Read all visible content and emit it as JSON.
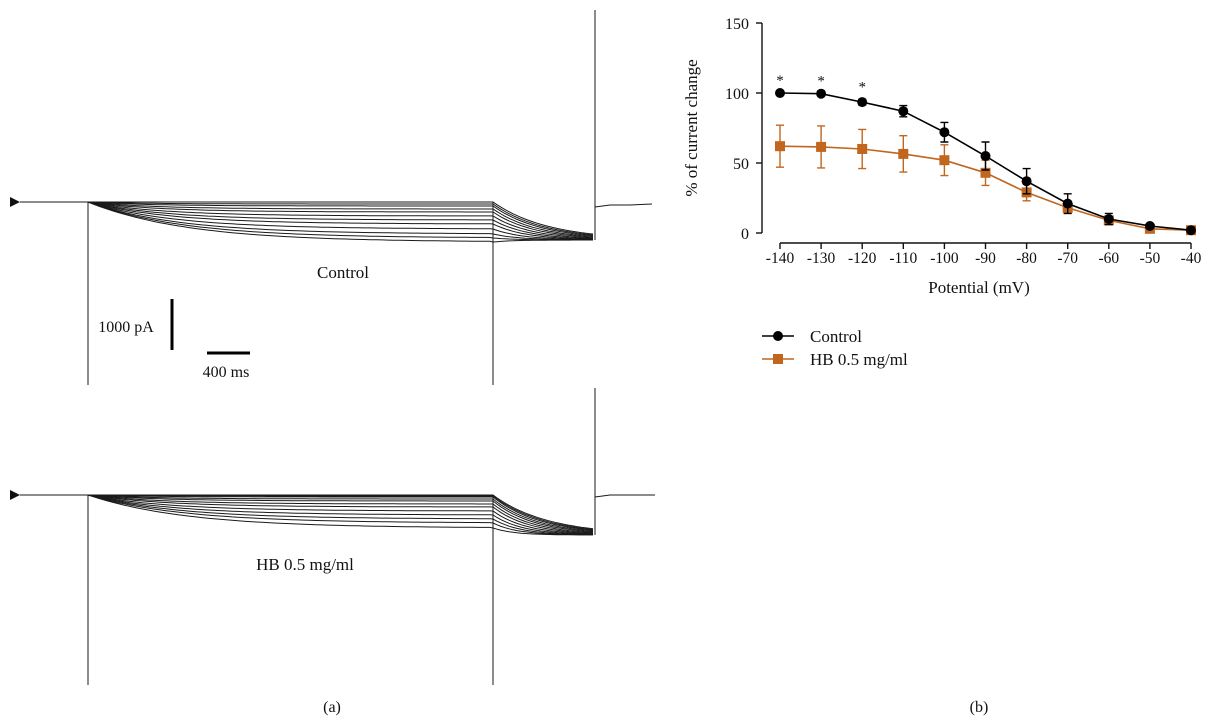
{
  "panel_a": {
    "label": "(a)",
    "traces": [
      {
        "name": "Control",
        "label": "Control"
      },
      {
        "name": "HB",
        "label": "HB 0.5 mg/ml"
      }
    ],
    "scale_bar": {
      "current_label": "1000 pA",
      "time_label": "400 ms"
    }
  },
  "panel_b": {
    "label": "(b)",
    "significance_marker": "*"
  },
  "chart_data": {
    "type": "line",
    "title": "",
    "xlabel": "Potential (mV)",
    "ylabel": "% of current change",
    "x": [
      -140,
      -130,
      -120,
      -110,
      -100,
      -90,
      -80,
      -70,
      -60,
      -50,
      -40
    ],
    "xticklabels": [
      "-140",
      "-130",
      "-120",
      "-110",
      "-100",
      "-90",
      "-80",
      "-70",
      "-60",
      "-50",
      "-40"
    ],
    "yticks": [
      0,
      50,
      100,
      150
    ],
    "ylim": [
      0,
      150
    ],
    "legend": "bottom",
    "significant_x": [
      -140,
      -130,
      -120
    ],
    "series": [
      {
        "name": "Control",
        "color": "#000000",
        "marker": "circle",
        "values": [
          100,
          99.5,
          93.5,
          87,
          72,
          55,
          37,
          21,
          10,
          5,
          2
        ],
        "errors": [
          0,
          0,
          2,
          4,
          7,
          10,
          9,
          7,
          4,
          1,
          1
        ]
      },
      {
        "name": "HB 0.5 mg/ml",
        "color": "#c0661f",
        "marker": "square",
        "values": [
          62,
          61.5,
          60,
          56.5,
          52,
          43,
          29,
          18,
          9,
          3,
          2
        ],
        "errors": [
          15,
          15,
          14,
          13,
          11,
          9,
          6,
          4,
          3,
          1,
          1
        ]
      }
    ]
  }
}
